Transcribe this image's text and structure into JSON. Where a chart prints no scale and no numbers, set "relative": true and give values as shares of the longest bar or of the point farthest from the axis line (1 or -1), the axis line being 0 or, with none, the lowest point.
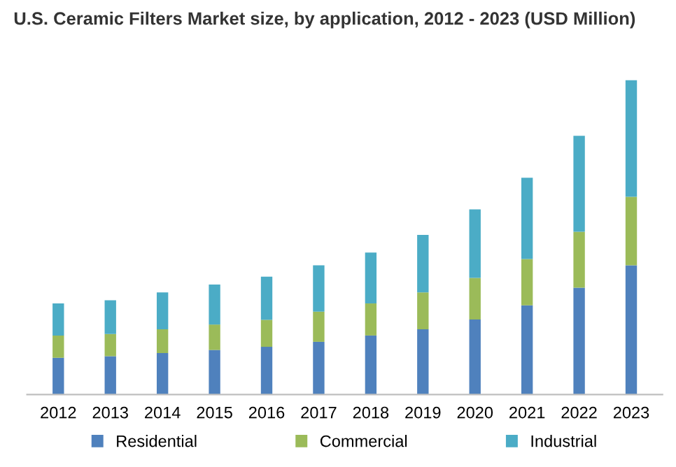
{
  "chart_data": {
    "type": "bar",
    "title": "U.S. Ceramic Filters Market size, by application, 2012 - 2023 (USD Million)",
    "categories": [
      "2012",
      "2013",
      "2014",
      "2015",
      "2016",
      "2017",
      "2018",
      "2019",
      "2020",
      "2021",
      "2022",
      "2023"
    ],
    "stacked": true,
    "relative": true,
    "legend": "bottom",
    "series": [
      {
        "name": "Residential",
        "color": "#4f81bd",
        "values": [
          0.117,
          0.122,
          0.132,
          0.142,
          0.152,
          0.168,
          0.188,
          0.208,
          0.239,
          0.284,
          0.34,
          0.411
        ]
      },
      {
        "name": "Commercial",
        "color": "#9bbb59",
        "values": [
          0.071,
          0.071,
          0.076,
          0.081,
          0.086,
          0.096,
          0.102,
          0.117,
          0.132,
          0.147,
          0.178,
          0.218
        ]
      },
      {
        "name": "Industrial",
        "color": "#4bacc6",
        "values": [
          0.102,
          0.107,
          0.117,
          0.127,
          0.137,
          0.147,
          0.162,
          0.183,
          0.218,
          0.259,
          0.305,
          0.371
        ]
      }
    ]
  }
}
